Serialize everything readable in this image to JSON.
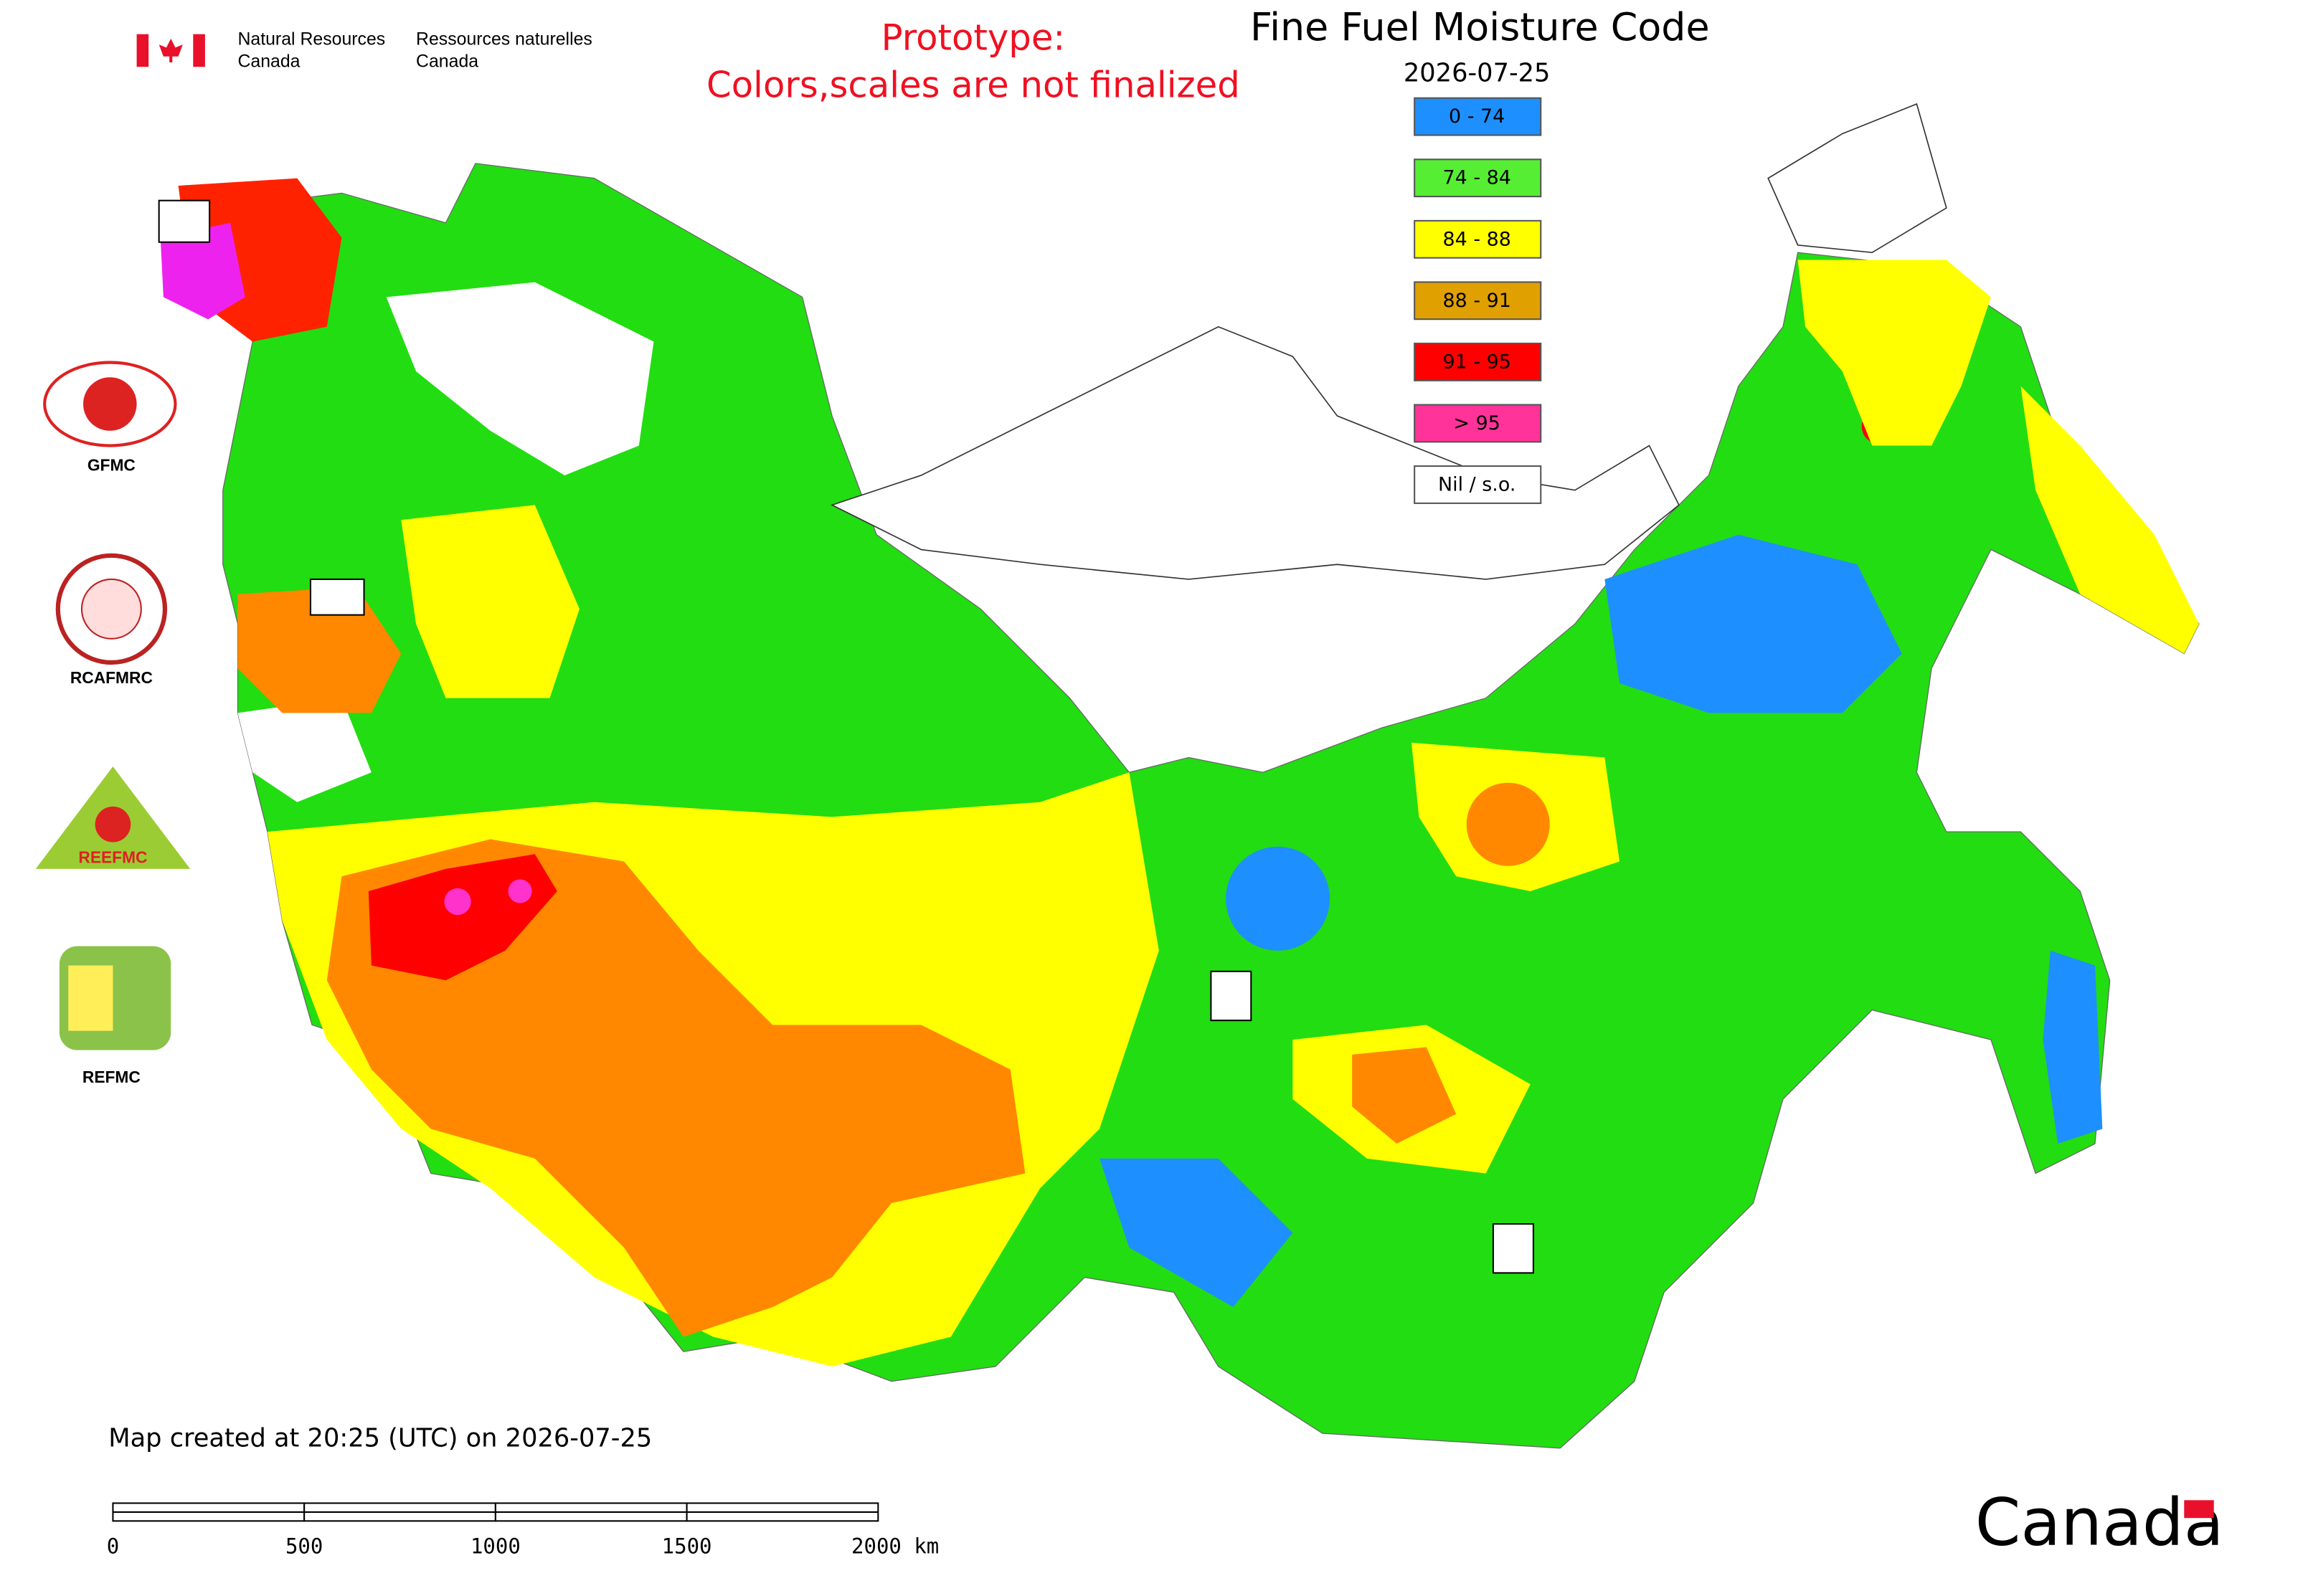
{
  "agency": {
    "en_line1": "Natural Resources",
    "en_line2": "Canada",
    "fr_line1": "Ressources naturelles",
    "fr_line2": "Canada"
  },
  "notice": [
    "Prototype:",
    "Colors,scales are not finalized"
  ],
  "title": "Fine Fuel Moisture Code",
  "date": "2026-07-25",
  "legend": [
    {
      "label": "0 - 74",
      "color": "#1e8fff"
    },
    {
      "label": "74 - 84",
      "color": "#55ee33"
    },
    {
      "label": "84 - 88",
      "color": "#ffff00"
    },
    {
      "label": "88 - 91",
      "color": "#e0a000"
    },
    {
      "label": "91 - 95",
      "color": "#ff0000"
    },
    {
      "label": "> 95",
      "color": "#ff3399"
    },
    {
      "label": "Nil / s.o.",
      "color": "#ffffff"
    }
  ],
  "logos": [
    "GFMC",
    "RCAFMRC",
    "REEFMC",
    "REFMC"
  ],
  "footer": "Map created at 20:25 (UTC) on 2026-07-25",
  "scale_bar": [
    "0",
    "500",
    "1000",
    "1500",
    "2000 km"
  ],
  "wordmark": "Canada"
}
